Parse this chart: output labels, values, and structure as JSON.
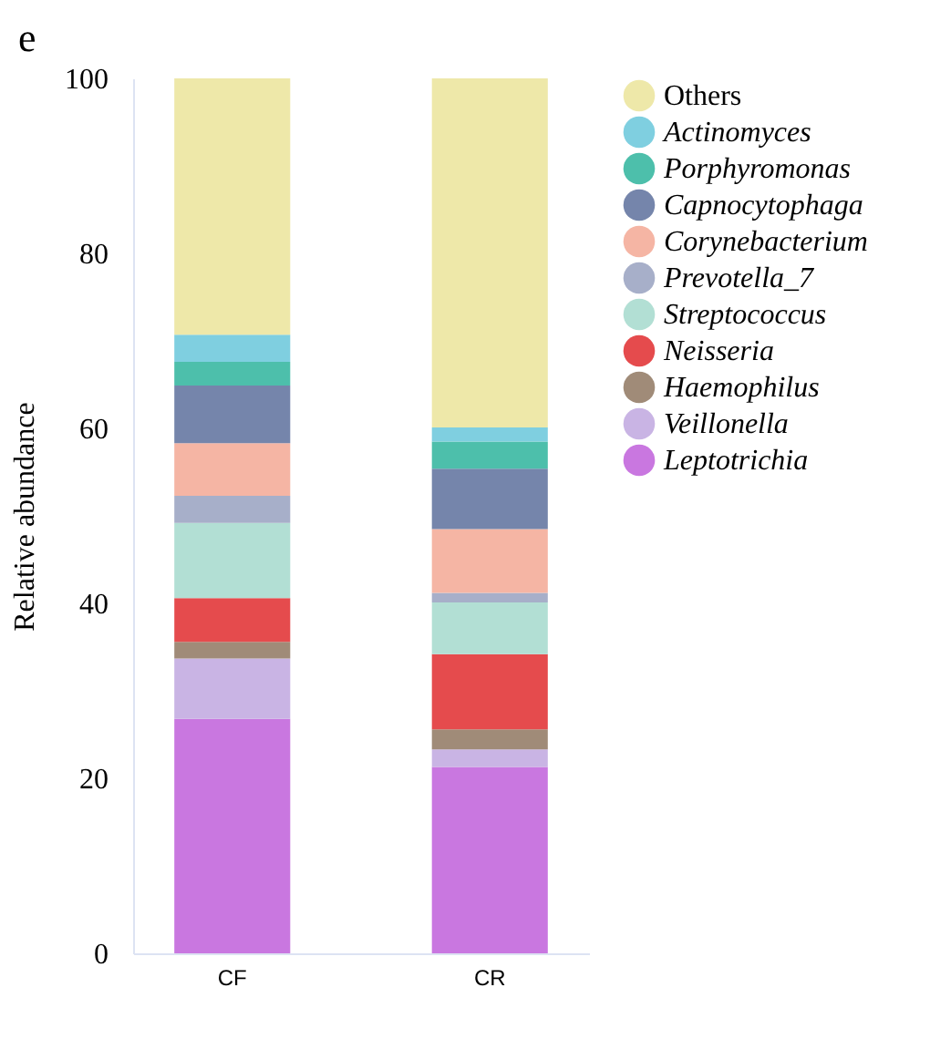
{
  "chart_data": {
    "type": "bar",
    "stacked": true,
    "ylabel": "Relative abundance",
    "categories": [
      "CF",
      "CR"
    ],
    "ylim": [
      0,
      100
    ],
    "yticks": [
      0,
      20,
      40,
      60,
      80,
      100
    ],
    "grid": false,
    "legend": "right",
    "annotations": [
      "e"
    ],
    "series": [
      {
        "name": "Leptotrichia",
        "color": "#c977e0",
        "values": [
          26.8,
          21.3
        ]
      },
      {
        "name": "Veillonella",
        "color": "#c9b4e4",
        "values": [
          6.9,
          2.0
        ]
      },
      {
        "name": "Haemophilus",
        "color": "#a08b78",
        "values": [
          1.9,
          2.3
        ]
      },
      {
        "name": "Neisseria",
        "color": "#e54b4d",
        "values": [
          5.0,
          8.6
        ]
      },
      {
        "name": "Streptococcus",
        "color": "#b2dfd4",
        "values": [
          8.6,
          5.9
        ]
      },
      {
        "name": "Prevotella_7",
        "color": "#a7afc9",
        "values": [
          3.1,
          1.1
        ]
      },
      {
        "name": "Corynebacterium",
        "color": "#f5b5a4",
        "values": [
          6.0,
          7.3
        ]
      },
      {
        "name": "Capnocytophaga",
        "color": "#7585ab",
        "values": [
          6.6,
          6.9
        ]
      },
      {
        "name": "Porphyromonas",
        "color": "#4dbfab",
        "values": [
          2.7,
          3.1
        ]
      },
      {
        "name": "Actinomyces",
        "color": "#7fcfe0",
        "values": [
          3.1,
          1.6
        ]
      },
      {
        "name": "Others",
        "color": "#eee8a9",
        "values": [
          29.3,
          39.9
        ]
      }
    ]
  }
}
